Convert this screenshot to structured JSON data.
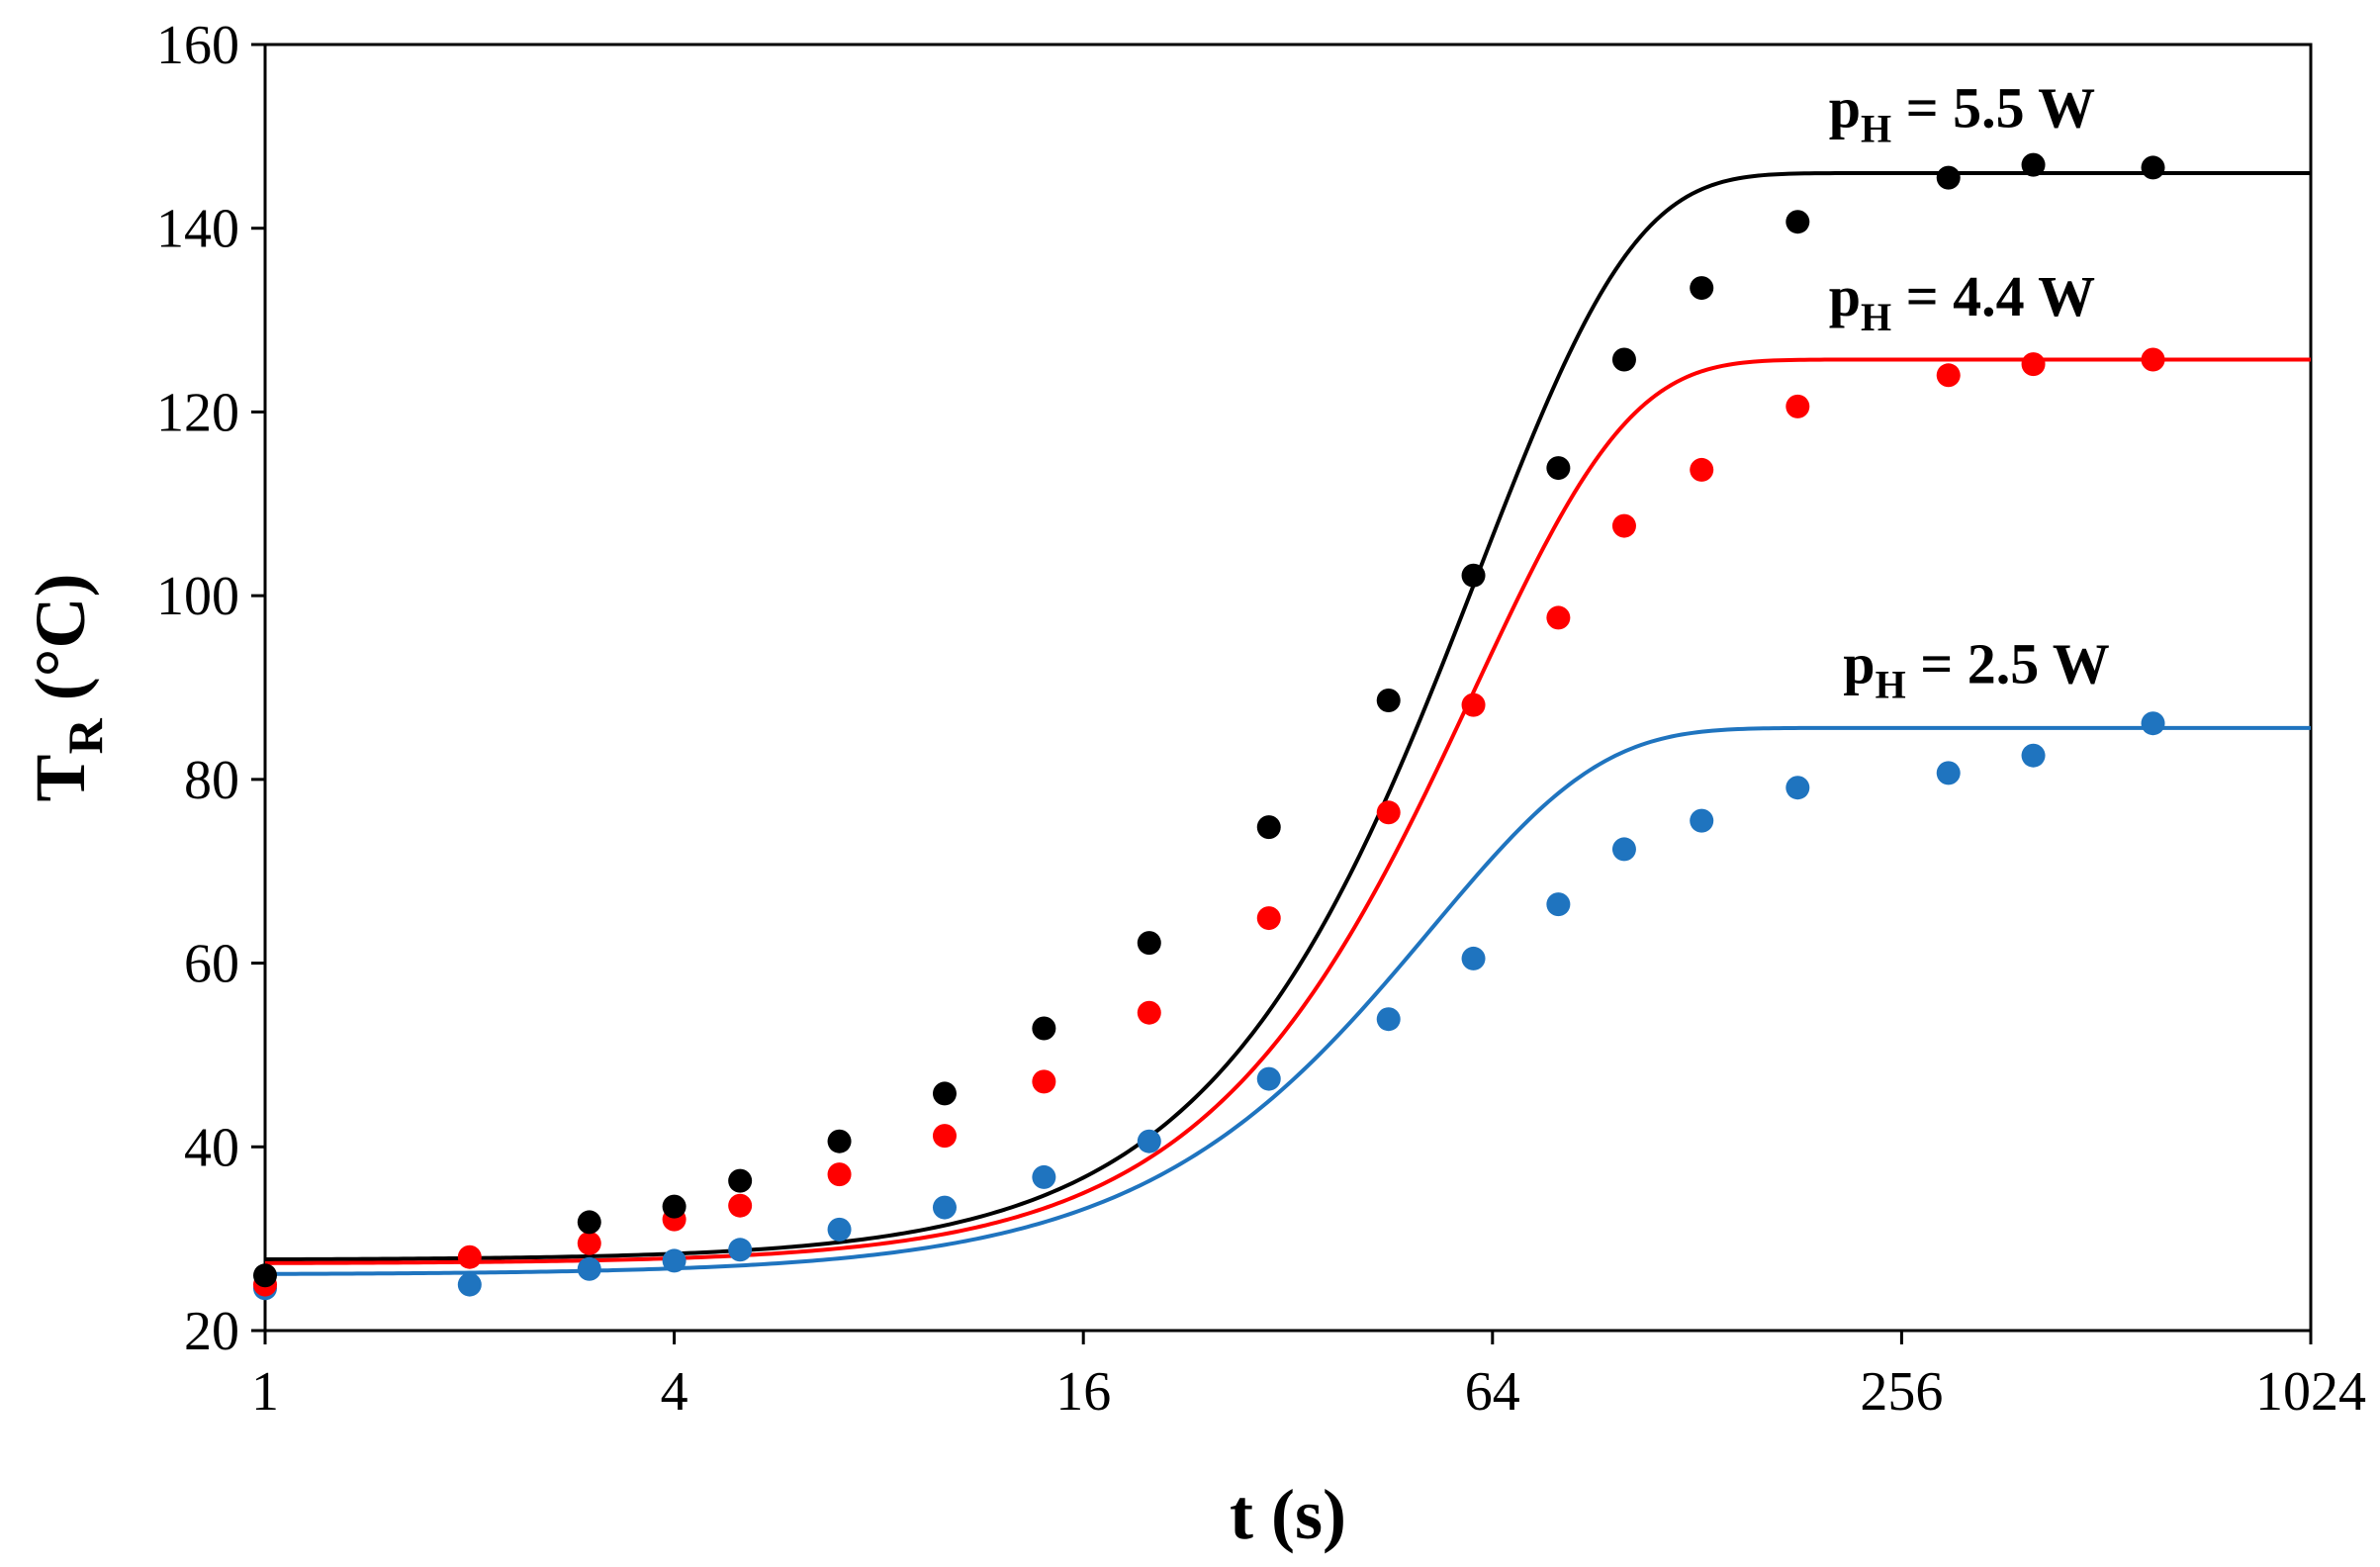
{
  "chart_data": {
    "type": "scatter",
    "title": "",
    "xlabel": "t (s)",
    "ylabel": "T_R (°C)",
    "ylabel_main": "T",
    "ylabel_sub": "R",
    "ylabel_rest": " (°C)",
    "xscale": "log2",
    "xlim": [
      1,
      1024
    ],
    "ylim": [
      20,
      160
    ],
    "xticks": [
      1,
      4,
      16,
      64,
      256,
      1024
    ],
    "xtick_labels": [
      "1",
      "4",
      "16",
      "64",
      "256",
      "1024"
    ],
    "yticks": [
      20,
      40,
      60,
      80,
      100,
      120,
      140,
      160
    ],
    "ytick_labels": [
      "20",
      "40",
      "60",
      "80",
      "100",
      "120",
      "140",
      "160"
    ],
    "grid": false,
    "legend": "none",
    "series": [
      {
        "name": "pH = 5.5 W",
        "label_main": "p",
        "label_sub": "H",
        "label_rest": " = 5.5 W",
        "color": "#000000",
        "fit": {
          "T0": 27.7,
          "Tinf": 146,
          "tau": 61,
          "n": 1.9
        },
        "points": [
          [
            1,
            26
          ],
          [
            3.0,
            31.8
          ],
          [
            4.0,
            33.5
          ],
          [
            5.0,
            36.3
          ],
          [
            7.0,
            40.6
          ],
          [
            10,
            45.8
          ],
          [
            14,
            52.9
          ],
          [
            20,
            62.2
          ],
          [
            30,
            74.8
          ],
          [
            45,
            88.6
          ],
          [
            60,
            102.2
          ],
          [
            80,
            113.9
          ],
          [
            100,
            125.7
          ],
          [
            130,
            133.5
          ],
          [
            180,
            140.7
          ],
          [
            300,
            145.5
          ],
          [
            400,
            146.9
          ],
          [
            600,
            146.6
          ]
        ]
      },
      {
        "name": "pH = 4.4 W",
        "label_main": "p",
        "label_sub": "H",
        "label_rest": " = 4.4 W",
        "color": "#ff0000",
        "fit": {
          "T0": 27.3,
          "Tinf": 125.7,
          "tau": 60,
          "n": 1.9
        },
        "points": [
          [
            1,
            25
          ],
          [
            2.0,
            28
          ],
          [
            3.0,
            29.5
          ],
          [
            4.0,
            32.1
          ],
          [
            5.0,
            33.6
          ],
          [
            7.0,
            37
          ],
          [
            10,
            41.2
          ],
          [
            14,
            47.1
          ],
          [
            20,
            54.6
          ],
          [
            30,
            64.9
          ],
          [
            45,
            76.4
          ],
          [
            60,
            88.1
          ],
          [
            80,
            97.6
          ],
          [
            100,
            107.6
          ],
          [
            130,
            113.7
          ],
          [
            180,
            120.6
          ],
          [
            300,
            124
          ],
          [
            400,
            125.2
          ],
          [
            600,
            125.7
          ]
        ]
      },
      {
        "name": "pH = 2.5 W",
        "label_main": "p",
        "label_sub": "H",
        "label_rest": " = 2.5 W",
        "color": "#1f74bf",
        "fit": {
          "T0": 26.1,
          "Tinf": 85.6,
          "tau": 52,
          "n": 1.75
        },
        "points": [
          [
            1,
            24.6
          ],
          [
            2.0,
            25
          ],
          [
            3.0,
            26.7
          ],
          [
            4.0,
            27.6
          ],
          [
            5.0,
            28.8
          ],
          [
            7.0,
            31
          ],
          [
            10,
            33.4
          ],
          [
            14,
            36.7
          ],
          [
            20,
            40.6
          ],
          [
            30,
            47.4
          ],
          [
            45,
            53.9
          ],
          [
            60,
            60.5
          ],
          [
            80,
            66.4
          ],
          [
            100,
            72.4
          ],
          [
            130,
            75.5
          ],
          [
            180,
            79.1
          ],
          [
            300,
            80.7
          ],
          [
            400,
            82.6
          ],
          [
            600,
            86.1
          ]
        ]
      }
    ],
    "annotation_anchors": [
      {
        "series": 0,
        "x": 200,
        "y": 151
      },
      {
        "series": 1,
        "x": 200,
        "y": 130.5
      },
      {
        "series": 2,
        "x": 210,
        "y": 90.5
      }
    ]
  }
}
